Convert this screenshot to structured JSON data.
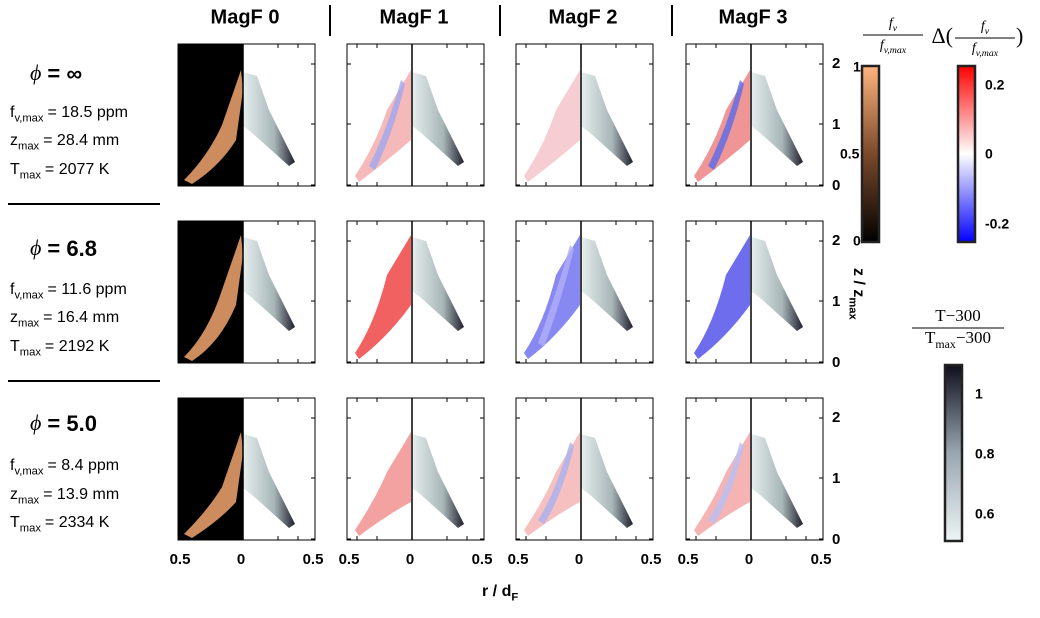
{
  "column_titles": [
    "MagF 0",
    "MagF 1",
    "MagF 2",
    "MagF 3"
  ],
  "phi_symbol": "ϕ",
  "rows": [
    {
      "phi_value": "= ∞",
      "params": [
        {
          "symbol": "f",
          "subscript": "v,max",
          "value": "= 18.5 ppm"
        },
        {
          "symbol": "z",
          "subscript": "max",
          "value": "= 28.4 mm"
        },
        {
          "symbol": "T",
          "subscript": "max",
          "value": "= 2077 K"
        }
      ]
    },
    {
      "phi_value": "= 6.8",
      "params": [
        {
          "symbol": "f",
          "subscript": "v,max",
          "value": "= 11.6 ppm"
        },
        {
          "symbol": "z",
          "subscript": "max",
          "value": "= 16.4 mm"
        },
        {
          "symbol": "T",
          "subscript": "max",
          "value": "= 2192 K"
        }
      ]
    },
    {
      "phi_value": "= 5.0",
      "params": [
        {
          "symbol": "f",
          "subscript": "v,max",
          "value": "= 8.4 ppm"
        },
        {
          "symbol": "z",
          "subscript": "max",
          "value": "= 13.9 mm"
        },
        {
          "symbol": "T",
          "subscript": "max",
          "value": "= 2334 K"
        }
      ]
    }
  ],
  "x_axis": {
    "symbol": "r / d",
    "subscript": "F",
    "tick_labels": [
      "0.5",
      "0",
      "0.5"
    ]
  },
  "y_axis": {
    "symbol": "z / z",
    "subscript": "max",
    "tick_labels": [
      "0",
      "1",
      "2"
    ]
  },
  "colorbars": [
    {
      "prefix": "",
      "numerator": [
        {
          "text": "f"
        },
        {
          "text": "v",
          "sub": true
        }
      ],
      "denominator": [
        {
          "text": "f"
        },
        {
          "text": "v,max",
          "sub": true
        }
      ],
      "suffix": "",
      "tick_labels": [
        "1",
        "0.5",
        "0"
      ]
    },
    {
      "prefix": "Δ(",
      "numerator": [
        {
          "text": "f"
        },
        {
          "text": "v",
          "sub": true
        }
      ],
      "denominator": [
        {
          "text": "f"
        },
        {
          "text": "v,max",
          "sub": true
        }
      ],
      "suffix": ")",
      "tick_labels": [
        "0.2",
        "0",
        "-0.2"
      ]
    },
    {
      "prefix": "",
      "numerator": [
        {
          "text": "T−300"
        }
      ],
      "denominator": [
        {
          "text": "T"
        },
        {
          "text": "max",
          "sub": true
        },
        {
          "text": "−300"
        }
      ],
      "suffix": "",
      "tick_labels": [
        "1",
        "0.8",
        "0.6"
      ]
    }
  ]
}
